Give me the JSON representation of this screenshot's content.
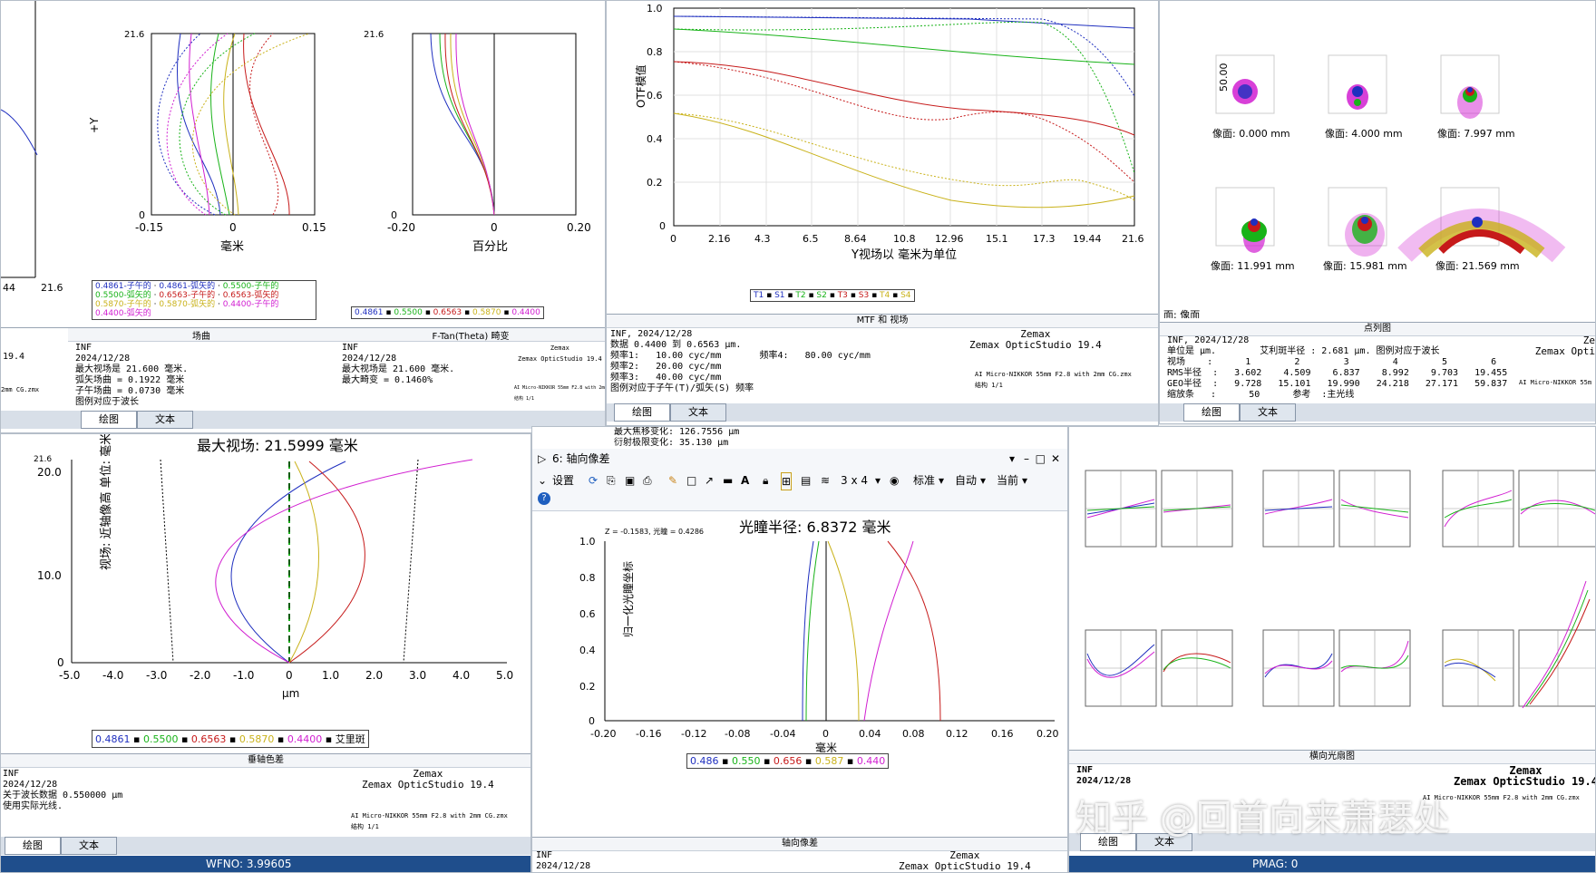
{
  "topleft": {
    "ymax": "21.6",
    "fc": {
      "ticks": [
        "-0.15",
        "0",
        "0.15"
      ],
      "xlabel": "毫米",
      "ylabel": "+Y",
      "legend": [
        "0.4861-子午的",
        "0.4861-弧矢的",
        "0.5500-子午的",
        "0.5500-弧矢的",
        "0.6563-子午的",
        "0.6563-弧矢的",
        "0.5870-子午的",
        "0.5870-弧矢的",
        "0.4400-子午的",
        "0.4400-弧矢的"
      ]
    },
    "dist": {
      "ticks": [
        "-0.20",
        "0",
        "0.20"
      ],
      "xlabel": "百分比",
      "legend": [
        "0.4861",
        "0.5500",
        "0.6563",
        "0.5870",
        "0.4400"
      ]
    },
    "edge_ticks": [
      "44",
      "21.6"
    ],
    "footer": {
      "title_left": "场曲",
      "title_right": "F-Tan(Theta) 畸变",
      "left_text": "INF\n2024/12/28\n最大视场是 21.600 毫米.\n弧矢场曲 = 0.1922 毫米\n子午场曲 = 0.0730 毫米\n图例对应于波长",
      "right_text": "INF\n2024/12/28\n最大视场是 21.600 毫米.\n最大畸变 = 0.1460%",
      "zemax": "Zemax\nZemax OpticStudio 19.4",
      "lens": "AI Micro-NIKKOR 55mm F2.8 with 2mm CG.zmx\n结构 1/1",
      "edge_text": "19.4",
      "edge_text2": "2mm CG.zmx"
    },
    "tabs": [
      "绘图",
      "文本"
    ]
  },
  "mtf": {
    "yticks": [
      "1.0",
      "0.8",
      "0.6",
      "0.4",
      "0.2",
      "0"
    ],
    "xticks": [
      "0",
      "2.16",
      "4.3",
      "6.5",
      "8.64",
      "10.8",
      "12.96",
      "15.1",
      "17.3",
      "19.44",
      "21.6"
    ],
    "ylabel": "OTF模值",
    "xlabel": "Y视场以 毫米为单位",
    "legend": [
      "T1",
      "S1",
      "T2",
      "S2",
      "T3",
      "S3",
      "T4",
      "S4"
    ],
    "footer": {
      "title": "MTF 和 视场",
      "text": "INF, 2024/12/28\n数据 0.4400 到 0.6563 μm.\n频率1:   10.00 cyc/mm       频率4:   80.00 cyc/mm\n频率2:   20.00 cyc/mm\n频率3:   40.00 cyc/mm\n图例对应于子午(T)/弧矢(S) 频率",
      "zemax": "Zemax\nZemax OpticStudio 19.4",
      "lens": "AI Micro-NIKKOR 55mm F2.8 with 2mm CG.zmx\n结构 1/1"
    },
    "tabs": [
      "绘图",
      "文本"
    ]
  },
  "spot": {
    "scale": "50.00",
    "labels": [
      "像面: 0.000 mm",
      "像面: 4.000 mm",
      "像面: 7.997 mm",
      "像面: 11.991 mm",
      "像面: 15.981 mm",
      "像面: 21.569 mm"
    ],
    "surface": "面: 像面",
    "footer": {
      "title": "点列图",
      "text": "INF, 2024/12/28\n单位是 μm.        艾利斑半径 : 2.681 μm. 图例对应于波长\n视场    :      1        2        3        4        5        6\nRMS半径  :   3.602    4.509    6.837    8.992    9.703   19.455\nGEO半径  :   9.728   15.101   19.990   24.218   27.171   59.837\n缩放条   :      50      参考  :主光线",
      "zemax": "Ze\nZemax Opti",
      "lens": "AI Micro-NIKKOR 55m"
    },
    "tabs": [
      "绘图",
      "文本"
    ]
  },
  "lateral": {
    "title": "最大视场: 21.5999 毫米",
    "ytop": "21.6",
    "yticks": [
      "20.0",
      "10.0",
      "0"
    ],
    "xticks": [
      "-5.0",
      "-4.0",
      "-3.0",
      "-2.0",
      "-1.0",
      "0",
      "1.0",
      "2.0",
      "3.0",
      "4.0",
      "5.0"
    ],
    "xlabel": "μm",
    "ylabel": "视场: 近轴像高 单位: 毫米",
    "legend": [
      "0.4861",
      "0.5500",
      "0.6563",
      "0.5870",
      "0.4400",
      "艾里斑"
    ],
    "footer": {
      "title": "垂轴色差",
      "text": "INF\n2024/12/28\n关于波长数据 0.550000 μm\n使用实际光线.",
      "zemax": "Zemax\nZemax OpticStudio 19.4",
      "lens": "AI Micro-NIKKOR 55mm F2.8 with 2mm CG.zmx\n结构 1/1"
    },
    "tabs": [
      "绘图",
      "文本"
    ],
    "status": "WFNO: 3.99605"
  },
  "axial": {
    "info_line1": "最大焦移变化: 126.7556 μm",
    "info_line2": "衍射极限变化: 35.130 μm",
    "window_title": "6: 轴向像差",
    "toolbar": {
      "settings": "设置",
      "grid": "3 x 4",
      "standard": "标准",
      "auto": "自动",
      "current": "当前"
    },
    "title": "光瞳半径: 6.8372 毫米",
    "zlabel": "Z = -0.1583, 光瞳 = 0.4286",
    "ylabel": "归一化光瞳坐标",
    "yticks": [
      "1.0",
      "0.8",
      "0.6",
      "0.4",
      "0.2",
      "0"
    ],
    "xticks": [
      "-0.20",
      "-0.16",
      "-0.12",
      "-0.08",
      "-0.04",
      "0",
      "0.04",
      "0.08",
      "0.12",
      "0.16",
      "0.20"
    ],
    "xlabel": "毫米",
    "legend": [
      "0.486",
      "0.550",
      "0.656",
      "0.587",
      "0.440"
    ],
    "footer": {
      "title": "轴向像差",
      "text": "INF\n2024/12/28",
      "zemax": "Zemax\nZemax OpticStudio 19.4"
    }
  },
  "ray": {
    "footer": {
      "title": "横向光扇图",
      "text": "INF\n2024/12/28",
      "zemax": "Zemax\nZemax OpticStudio 19.4",
      "lens": "AI Micro-NIKKOR 55mm F2.8 with 2mm CG.zmx"
    },
    "tabs": [
      "绘图",
      "文本"
    ],
    "status": "PMAG: 0"
  },
  "watermark": "知乎 @回首向来萧瑟处",
  "colors": {
    "blue": "#1f2fbf",
    "green": "#19b319",
    "red": "#c61a1a",
    "yellow": "#c9b21a",
    "magenta": "#d11fd1",
    "panel_border": "#b5bec9",
    "status": "#1f4e8c"
  }
}
